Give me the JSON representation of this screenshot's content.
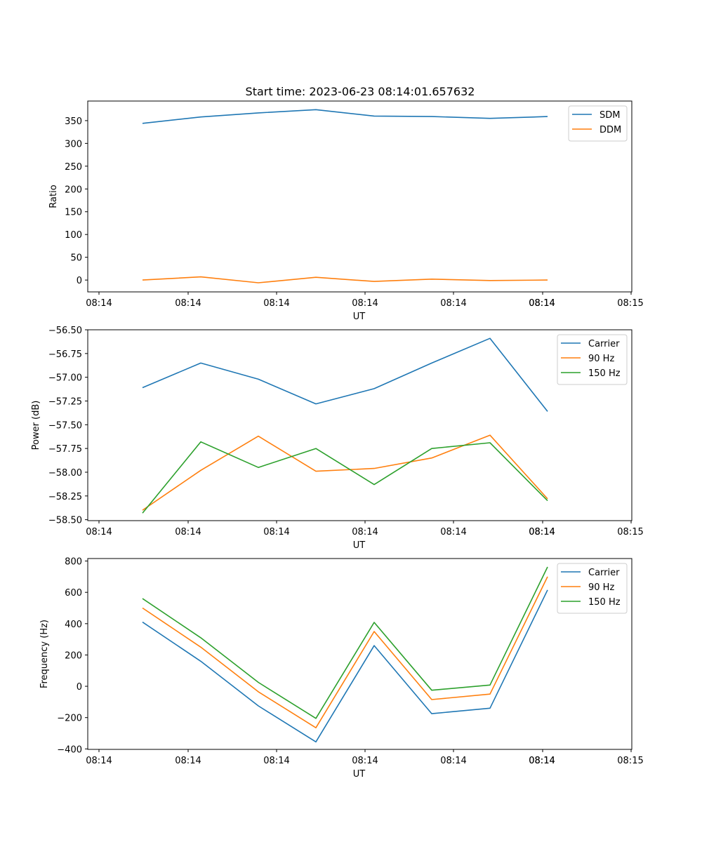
{
  "figure": {
    "title": "Start time: 2023-06-23 08:14:01.657632"
  },
  "chart_data": [
    {
      "type": "line",
      "title": "Start time: 2023-06-23 08:14:01.657632",
      "xlabel": "UT",
      "ylabel": "Ratio",
      "xtick_labels": [
        "08:14",
        "08:14",
        "08:14",
        "08:14",
        "08:14",
        "08:14",
        "08:14",
        "08:15"
      ],
      "ylim": [
        -26,
        393
      ],
      "yticks": [
        {
          "value": 0,
          "label": "0"
        },
        {
          "value": 50,
          "label": "50"
        },
        {
          "value": 100,
          "label": "100"
        },
        {
          "value": 150,
          "label": "150"
        },
        {
          "value": 200,
          "label": "200"
        },
        {
          "value": 250,
          "label": "250"
        },
        {
          "value": 300,
          "label": "300"
        },
        {
          "value": 350,
          "label": "350"
        }
      ],
      "legend_position": "upper right",
      "series": [
        {
          "name": "SDM",
          "color": "#1f77b4",
          "values": [
            344,
            358,
            367,
            374,
            360,
            359,
            355,
            359
          ]
        },
        {
          "name": "DDM",
          "color": "#ff7f0e",
          "values": [
            0,
            7,
            -6,
            6,
            -3,
            2,
            -1,
            0
          ]
        }
      ]
    },
    {
      "type": "line",
      "xlabel": "UT",
      "ylabel": "Power (dB)",
      "xtick_labels": [
        "08:14",
        "08:14",
        "08:14",
        "08:14",
        "08:14",
        "08:14",
        "08:14",
        "08:15"
      ],
      "ylim": [
        -58.51,
        -56.5
      ],
      "yticks": [
        {
          "value": -58.5,
          "label": "−58.50"
        },
        {
          "value": -58.25,
          "label": "−58.25"
        },
        {
          "value": -58.0,
          "label": "−58.00"
        },
        {
          "value": -57.75,
          "label": "−57.75"
        },
        {
          "value": -57.5,
          "label": "−57.50"
        },
        {
          "value": -57.25,
          "label": "−57.25"
        },
        {
          "value": -57.0,
          "label": "−57.00"
        },
        {
          "value": -56.75,
          "label": "−56.75"
        },
        {
          "value": -56.5,
          "label": "−56.50"
        }
      ],
      "legend_position": "upper right",
      "series": [
        {
          "name": "Carrier",
          "color": "#1f77b4",
          "values": [
            -57.11,
            -56.85,
            -57.02,
            -57.28,
            -57.12,
            -56.85,
            -56.59,
            -57.36
          ]
        },
        {
          "name": "90 Hz",
          "color": "#ff7f0e",
          "values": [
            -58.4,
            -57.98,
            -57.62,
            -57.99,
            -57.96,
            -57.85,
            -57.61,
            -58.28
          ]
        },
        {
          "name": "150 Hz",
          "color": "#2ca02c",
          "values": [
            -58.43,
            -57.68,
            -57.95,
            -57.75,
            -58.13,
            -57.75,
            -57.69,
            -58.3
          ]
        }
      ]
    },
    {
      "type": "line",
      "xlabel": "UT",
      "ylabel": "Frequency (Hz)",
      "xtick_labels": [
        "08:14",
        "08:14",
        "08:14",
        "08:14",
        "08:14",
        "08:14",
        "08:14",
        "08:15"
      ],
      "ylim": [
        -403,
        816
      ],
      "yticks": [
        {
          "value": -400,
          "label": "−400"
        },
        {
          "value": -200,
          "label": "−200"
        },
        {
          "value": 0,
          "label": "0"
        },
        {
          "value": 200,
          "label": "200"
        },
        {
          "value": 400,
          "label": "400"
        },
        {
          "value": 600,
          "label": "600"
        },
        {
          "value": 800,
          "label": "800"
        }
      ],
      "legend_position": "upper right",
      "series": [
        {
          "name": "Carrier",
          "color": "#1f77b4",
          "values": [
            410,
            160,
            -125,
            -355,
            260,
            -175,
            -140,
            615
          ]
        },
        {
          "name": "90 Hz",
          "color": "#ff7f0e",
          "values": [
            500,
            250,
            -35,
            -265,
            350,
            -85,
            -50,
            700
          ]
        },
        {
          "name": "150 Hz",
          "color": "#2ca02c",
          "values": [
            560,
            310,
            25,
            -205,
            408,
            -25,
            8,
            762
          ]
        }
      ]
    }
  ]
}
